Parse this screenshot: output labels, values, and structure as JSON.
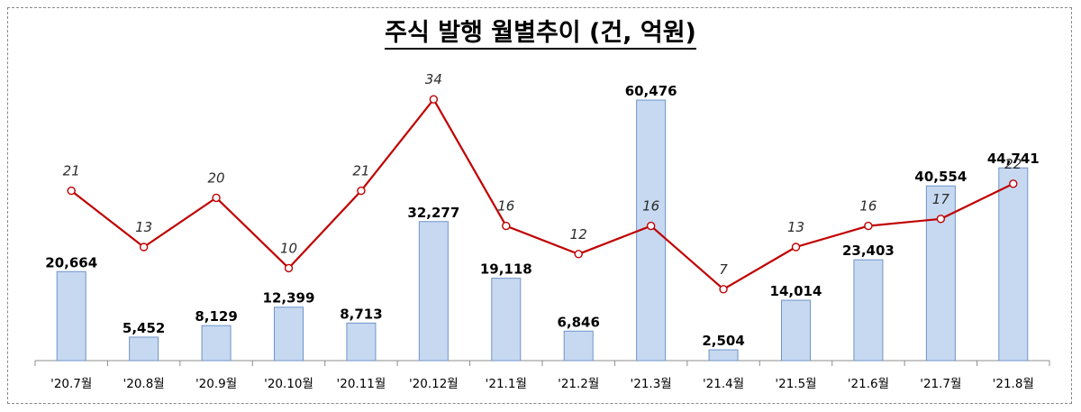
{
  "title": "주식 발행 월별추이 (건, 억원)",
  "chart_data": {
    "type": "bar",
    "title": "주식 발행 월별추이 (건, 억원)",
    "categories": [
      "'20.7월",
      "'20.8월",
      "'20.9월",
      "'20.10월",
      "'20.11월",
      "'20.12월",
      "'21.1월",
      "'21.2월",
      "'21.3월",
      "'21.4월",
      "'21.5월",
      "'21.6월",
      "'21.7월",
      "'21.8월"
    ],
    "series": [
      {
        "type": "bar",
        "unit": "억원",
        "values": [
          20664,
          5452,
          8129,
          12399,
          8713,
          32277,
          19118,
          6846,
          60476,
          2504,
          14014,
          23403,
          40554,
          44741
        ],
        "labels": [
          "20,664",
          "5,452",
          "8,129",
          "12,399",
          "8,713",
          "32,277",
          "19,118",
          "6,846",
          "60,476",
          "2,504",
          "14,014",
          "23,403",
          "40,554",
          "44,741"
        ],
        "color": "#c6d9f1"
      },
      {
        "type": "line",
        "unit": "건",
        "values": [
          21,
          13,
          20,
          10,
          21,
          34,
          16,
          12,
          16,
          7,
          13,
          16,
          17,
          22
        ],
        "labels": [
          "21",
          "13",
          "20",
          "10",
          "21",
          "34",
          "16",
          "12",
          "16",
          "7",
          "13",
          "16",
          "17",
          "22"
        ],
        "color": "#c00000"
      }
    ],
    "legend": "none",
    "grid": false
  }
}
